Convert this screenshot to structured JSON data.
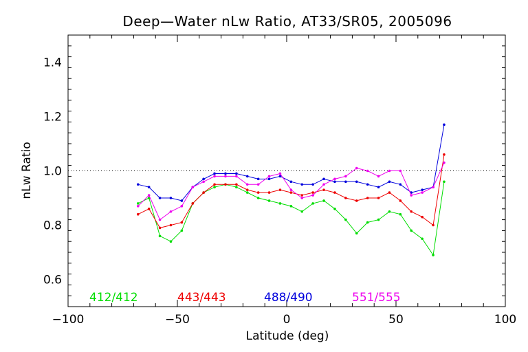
{
  "chart_data": {
    "type": "line",
    "title": "Deep—Water nLw Ratio, AT33/SR05, 2005096",
    "xlabel": "Latitude (deg)",
    "ylabel": "nLw Ratio",
    "xlim": [
      -100,
      100
    ],
    "ylim": [
      0.5,
      1.5
    ],
    "x_ticks": [
      "−100",
      "−50",
      "0",
      "50",
      "100"
    ],
    "y_ticks": [
      "0.6",
      "0.8",
      "1.0",
      "1.2",
      "1.4"
    ],
    "reference_line": 1.0,
    "grid": false,
    "legend_position": "bottom",
    "x": [
      -68,
      -63,
      -58,
      -53,
      -48,
      -43,
      -38,
      -33,
      -28,
      -23,
      -18,
      -13,
      -8,
      -3,
      2,
      7,
      12,
      17,
      22,
      27,
      32,
      37,
      42,
      47,
      52,
      57,
      62,
      67,
      72
    ],
    "series": [
      {
        "name": "412/412",
        "color": "#00dd00",
        "values": [
          0.88,
          0.9,
          0.76,
          0.74,
          0.78,
          0.88,
          0.92,
          0.94,
          0.95,
          0.94,
          0.92,
          0.9,
          0.89,
          0.88,
          0.87,
          0.85,
          0.88,
          0.89,
          0.86,
          0.82,
          0.77,
          0.81,
          0.82,
          0.85,
          0.84,
          0.78,
          0.75,
          0.69,
          0.96
        ]
      },
      {
        "name": "443/443",
        "color": "#ee0000",
        "values": [
          0.84,
          0.86,
          0.79,
          0.8,
          0.81,
          0.88,
          0.92,
          0.95,
          0.95,
          0.95,
          0.93,
          0.92,
          0.92,
          0.93,
          0.92,
          0.91,
          0.92,
          0.93,
          0.92,
          0.9,
          0.89,
          0.9,
          0.9,
          0.92,
          0.89,
          0.85,
          0.83,
          0.8,
          1.06
        ]
      },
      {
        "name": "488/490",
        "color": "#0000dd",
        "values": [
          0.95,
          0.94,
          0.9,
          0.9,
          0.89,
          0.94,
          0.97,
          0.99,
          0.99,
          0.99,
          0.98,
          0.97,
          0.97,
          0.98,
          0.96,
          0.95,
          0.95,
          0.97,
          0.96,
          0.96,
          0.96,
          0.95,
          0.94,
          0.96,
          0.95,
          0.92,
          0.93,
          0.94,
          1.17
        ]
      },
      {
        "name": "551/555",
        "color": "#ee00ee",
        "values": [
          0.87,
          0.91,
          0.82,
          0.85,
          0.87,
          0.94,
          0.96,
          0.98,
          0.98,
          0.98,
          0.95,
          0.95,
          0.98,
          0.99,
          0.93,
          0.9,
          0.91,
          0.95,
          0.97,
          0.98,
          1.01,
          1.0,
          0.98,
          1.0,
          1.0,
          0.91,
          0.92,
          0.94,
          1.03
        ]
      }
    ]
  }
}
